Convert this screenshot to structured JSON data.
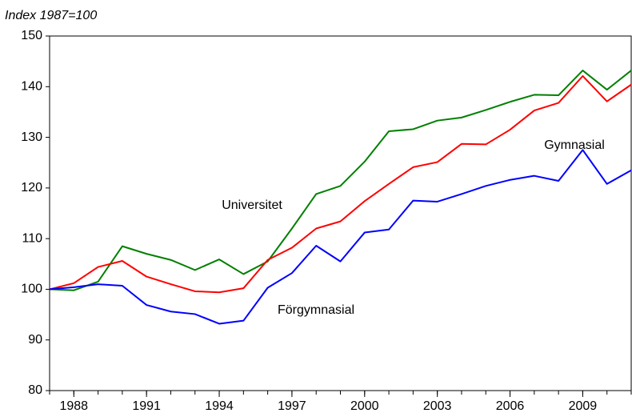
{
  "chart_data": {
    "type": "line",
    "y_axis_label": "Index 1987=100",
    "x": [
      1987,
      1988,
      1989,
      1990,
      1991,
      1992,
      1993,
      1994,
      1995,
      1996,
      1997,
      1998,
      1999,
      2000,
      2001,
      2002,
      2003,
      2004,
      2005,
      2006,
      2007,
      2008,
      2009,
      2010,
      2011
    ],
    "series": [
      {
        "name": "Universitet",
        "color": "#008000",
        "values": [
          100,
          99.8,
          101.5,
          108.5,
          107,
          105.8,
          103.8,
          105.9,
          103,
          105.5,
          112,
          118.8,
          120.4,
          125.2,
          131.2,
          131.6,
          133.3,
          133.9,
          135.4,
          137,
          138.4,
          138.3,
          143.2,
          139.4,
          143.2
        ]
      },
      {
        "name": "Gymnasial",
        "color": "#ff0000",
        "values": [
          100,
          101.2,
          104.4,
          105.6,
          102.5,
          101,
          99.6,
          99.4,
          100.2,
          105.8,
          108.2,
          112,
          113.4,
          117.4,
          120.8,
          124.1,
          125.1,
          128.7,
          128.6,
          131.5,
          135.3,
          136.8,
          142.1,
          137.1,
          140.4
        ]
      },
      {
        "name": "Förgymnasial",
        "color": "#0000ff",
        "values": [
          100,
          100.4,
          101,
          100.7,
          96.9,
          95.6,
          95.1,
          93.2,
          93.8,
          100.3,
          103.2,
          108.6,
          105.5,
          111.2,
          111.8,
          117.5,
          117.3,
          118.8,
          120.4,
          121.6,
          122.4,
          121.4,
          127.5,
          120.8,
          123.5
        ]
      }
    ],
    "xlim": [
      1987,
      2011
    ],
    "xticks": [
      1988,
      1991,
      1994,
      1997,
      2000,
      2003,
      2006,
      2009
    ],
    "ylim": [
      80,
      150
    ],
    "yticks": [
      80,
      90,
      100,
      110,
      120,
      130,
      140,
      150
    ],
    "grid": false
  }
}
